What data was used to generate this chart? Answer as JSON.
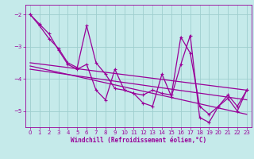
{
  "title": "",
  "xlabel": "Windchill (Refroidissement éolien,°C)",
  "background_color": "#c5eaea",
  "grid_color": "#9ecece",
  "line_color": "#990099",
  "xlim": [
    -0.5,
    23.5
  ],
  "ylim": [
    -5.5,
    -1.7
  ],
  "yticks": [
    -5,
    -4,
    -3,
    -2
  ],
  "xticks": [
    0,
    1,
    2,
    3,
    4,
    5,
    6,
    7,
    8,
    9,
    10,
    11,
    12,
    13,
    14,
    15,
    16,
    17,
    18,
    19,
    20,
    21,
    22,
    23
  ],
  "series1_x": [
    0,
    1,
    2,
    3,
    4,
    5,
    6,
    7,
    8,
    9,
    10,
    11,
    12,
    13,
    14,
    15,
    16,
    17,
    18,
    19,
    20,
    21,
    22,
    23
  ],
  "series1_y": [
    -2.0,
    -2.3,
    -2.6,
    -3.1,
    -3.55,
    -3.7,
    -3.55,
    -4.35,
    -4.65,
    -3.7,
    -4.35,
    -4.45,
    -4.75,
    -4.85,
    -3.85,
    -4.55,
    -3.55,
    -2.65,
    -5.2,
    -5.35,
    -4.85,
    -4.6,
    -5.0,
    -4.35
  ],
  "series2_x": [
    0,
    1,
    2,
    3,
    4,
    5,
    6,
    7,
    8,
    9,
    10,
    11,
    12,
    13,
    14,
    15,
    16,
    17,
    18,
    19,
    20,
    21,
    22,
    23
  ],
  "series2_y": [
    -2.0,
    -2.35,
    -2.75,
    -3.05,
    -3.5,
    -3.65,
    -2.35,
    -3.5,
    -3.85,
    -4.3,
    -4.35,
    -4.45,
    -4.5,
    -4.35,
    -4.45,
    -4.5,
    -2.7,
    -3.2,
    -4.85,
    -5.1,
    -4.85,
    -4.5,
    -4.85,
    -4.35
  ],
  "trend1_x": [
    0,
    23
  ],
  "trend1_y": [
    -3.5,
    -4.35
  ],
  "trend2_x": [
    0,
    23
  ],
  "trend2_y": [
    -3.7,
    -4.65
  ],
  "trend3_x": [
    0,
    23
  ],
  "trend3_y": [
    -3.6,
    -5.1
  ]
}
